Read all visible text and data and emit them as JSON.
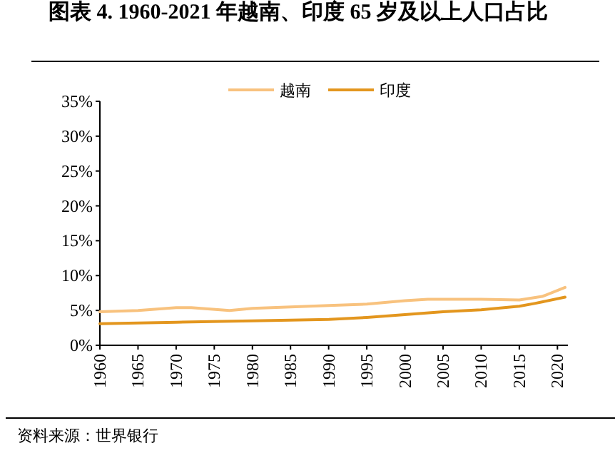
{
  "chart_data": {
    "type": "line",
    "title": "图表 4.   1960-2021 年越南、印度 65 岁及以上人口占比",
    "x": [
      1960,
      1965,
      1970,
      1972,
      1977,
      1980,
      1985,
      1990,
      1995,
      2000,
      2003,
      2010,
      2015,
      2018,
      2021
    ],
    "series": [
      {
        "name": "越南",
        "color": "#f8c27e",
        "values": [
          4.8,
          5.0,
          5.4,
          5.4,
          5.0,
          5.3,
          5.5,
          5.7,
          5.9,
          6.4,
          6.6,
          6.6,
          6.5,
          7.0,
          8.3
        ]
      },
      {
        "name": "印度",
        "color": "#e3961e",
        "x": [
          1960,
          1970,
          1980,
          1990,
          1995,
          2000,
          2005,
          2010,
          2015,
          2017,
          2021
        ],
        "values": [
          3.1,
          3.3,
          3.5,
          3.7,
          4.0,
          4.4,
          4.8,
          5.1,
          5.6,
          6.0,
          6.9
        ]
      }
    ],
    "xlim": [
      1960,
      2021
    ],
    "xticks": [
      1960,
      1965,
      1970,
      1975,
      1980,
      1985,
      1990,
      1995,
      2000,
      2005,
      2010,
      2015,
      2020
    ],
    "ylim": [
      0,
      35
    ],
    "yticks": [
      {
        "value": 0,
        "label": "0%"
      },
      {
        "value": 5,
        "label": "5%"
      },
      {
        "value": 10,
        "label": "10%"
      },
      {
        "value": 15,
        "label": "15%"
      },
      {
        "value": 20,
        "label": "20%"
      },
      {
        "value": 25,
        "label": "25%"
      },
      {
        "value": 30,
        "label": "30%"
      },
      {
        "value": 35,
        "label": "35%"
      }
    ],
    "legend": "top",
    "grid": false,
    "marker": "none",
    "line_style": "solid",
    "annotations": [
      "资料来源：世界银行"
    ]
  }
}
